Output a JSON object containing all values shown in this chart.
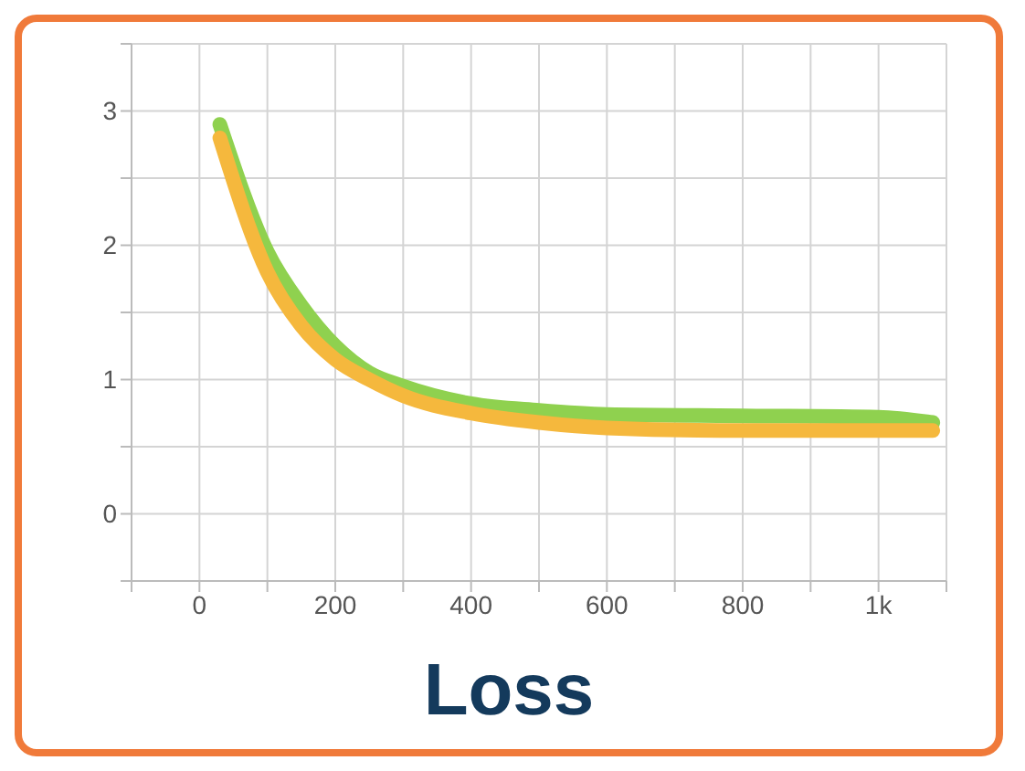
{
  "chart_data": {
    "type": "line",
    "title": "Loss",
    "x": [
      30,
      100,
      150,
      200,
      250,
      300,
      400,
      500,
      600,
      800,
      1000,
      1080
    ],
    "series": [
      {
        "color": "#8fd14f",
        "values": [
          2.9,
          1.95,
          1.55,
          1.25,
          1.05,
          0.95,
          0.82,
          0.77,
          0.74,
          0.73,
          0.72,
          0.68
        ]
      },
      {
        "color": "#f5b83d",
        "values": [
          2.8,
          1.8,
          1.4,
          1.15,
          1.0,
          0.88,
          0.75,
          0.68,
          0.64,
          0.62,
          0.62,
          0.62
        ]
      }
    ],
    "xlim": [
      -100,
      1100
    ],
    "xticks": [
      {
        "value": -100,
        "label": null
      },
      0,
      {
        "value": 100,
        "label": null
      },
      200,
      {
        "value": 300,
        "label": null
      },
      400,
      {
        "value": 500,
        "label": null
      },
      600,
      {
        "value": 700,
        "label": null
      },
      800,
      {
        "value": 900,
        "label": null
      },
      {
        "value": 1000,
        "label": "1k"
      },
      {
        "value": 1100,
        "label": null
      }
    ],
    "ylim": [
      -0.5,
      3.5
    ],
    "yticks": [
      {
        "value": -0.5,
        "label": null
      },
      0,
      {
        "value": 0.5,
        "label": null
      },
      1,
      {
        "value": 1.5,
        "label": null
      },
      2,
      {
        "value": 2.5,
        "label": null
      },
      3,
      {
        "value": 3.5,
        "label": null
      }
    ],
    "grid": true,
    "legend": false,
    "marker": "none",
    "line_style": "solid"
  }
}
